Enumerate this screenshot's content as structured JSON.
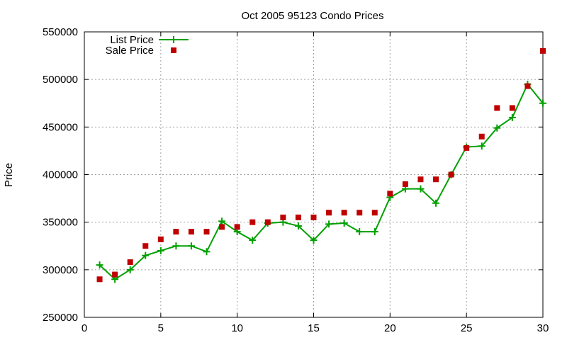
{
  "chart_data": {
    "type": "line",
    "title": "Oct 2005 95123 Condo Prices",
    "ylabel": "Price",
    "xlabel": "",
    "xlim": [
      0,
      30
    ],
    "ylim": [
      250000,
      550000
    ],
    "x_ticks": [
      "0",
      "5",
      "10",
      "15",
      "20",
      "25",
      "30"
    ],
    "y_ticks": [
      "250000",
      "300000",
      "350000",
      "400000",
      "450000",
      "500000",
      "550000"
    ],
    "grid": true,
    "legend_position": "top-left",
    "x": [
      1,
      2,
      3,
      4,
      5,
      6,
      7,
      8,
      9,
      10,
      11,
      12,
      13,
      14,
      15,
      16,
      17,
      18,
      19,
      20,
      21,
      22,
      23,
      24,
      25,
      26,
      27,
      28,
      29,
      30
    ],
    "series": [
      {
        "name": "List Price",
        "style": "line+cross",
        "color": "#00a000",
        "values": [
          305000,
          290000,
          300000,
          315000,
          320000,
          325000,
          325000,
          319000,
          351000,
          340000,
          331000,
          349000,
          350000,
          346000,
          331000,
          348000,
          349000,
          340000,
          340000,
          376000,
          385000,
          385000,
          370000,
          400000,
          429000,
          430000,
          449000,
          460000,
          495000,
          475000
        ]
      },
      {
        "name": "Sale Price",
        "style": "square",
        "color": "#c00000",
        "values": [
          290000,
          295000,
          308000,
          325000,
          332000,
          340000,
          340000,
          340000,
          345000,
          345000,
          350000,
          350000,
          355000,
          355000,
          355000,
          360000,
          360000,
          360000,
          360000,
          380000,
          390000,
          395000,
          395000,
          400000,
          428000,
          440000,
          470000,
          470000,
          493000,
          530000
        ]
      }
    ]
  }
}
